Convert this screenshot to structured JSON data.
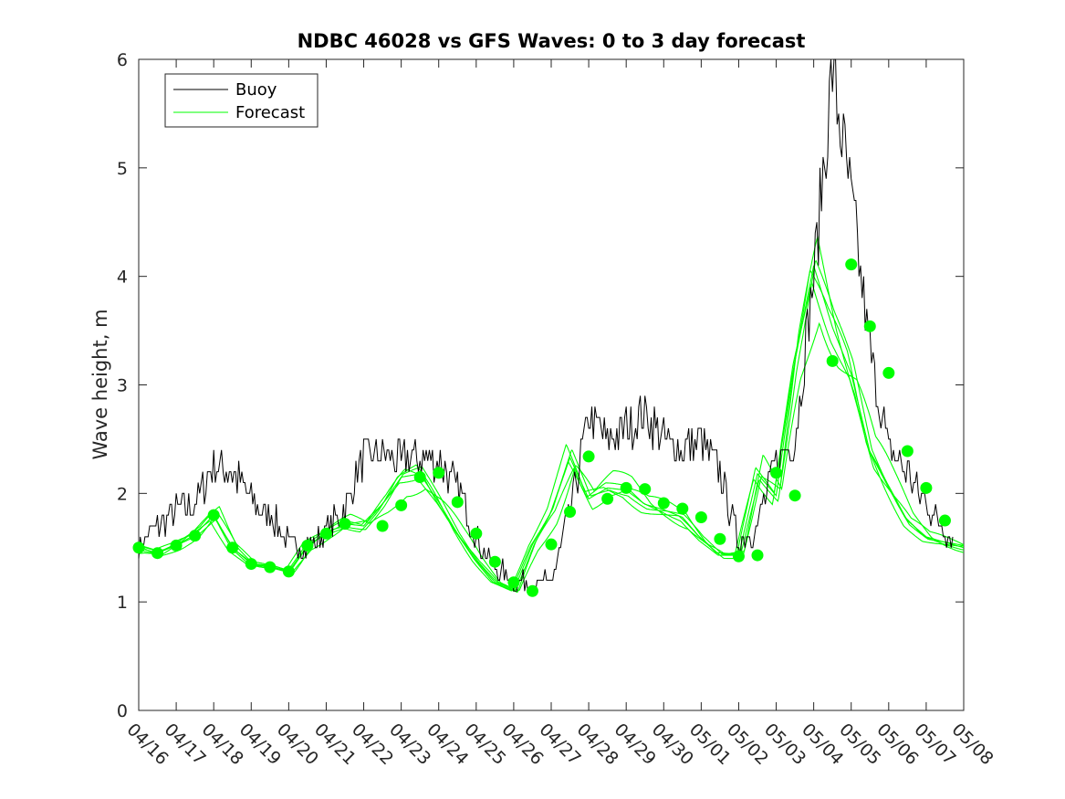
{
  "chart_data": {
    "type": "line",
    "title": "NDBC 46028 vs GFS Waves: 0 to 3 day forecast",
    "xlabel": "",
    "ylabel": "Wave height, m",
    "xlim": [
      "04/16",
      "05/08"
    ],
    "ylim": [
      0,
      6
    ],
    "x_tick_labels": [
      "04/16",
      "04/17",
      "04/18",
      "04/19",
      "04/20",
      "04/21",
      "04/22",
      "04/23",
      "04/24",
      "04/25",
      "04/26",
      "04/27",
      "04/28",
      "04/29",
      "04/30",
      "05/01",
      "05/02",
      "05/03",
      "05/04",
      "05/05",
      "05/06",
      "05/07",
      "05/08"
    ],
    "y_ticks": [
      0,
      1,
      2,
      3,
      4,
      5,
      6
    ],
    "grid": false,
    "legend": {
      "position": "top-left",
      "entries": [
        "Buoy",
        "Forecast"
      ]
    },
    "colors": {
      "buoy": "#000000",
      "forecast": "#00ff00",
      "axes": "#262626"
    },
    "buoy_x_day_offsets": [
      0,
      0.5,
      1,
      1.5,
      2,
      2.5,
      3,
      3.5,
      4,
      4.5,
      5,
      5.5,
      6,
      6.5,
      7,
      7.5,
      8,
      8.5,
      9,
      9.5,
      10,
      10.5,
      11,
      11.5,
      12,
      12.5,
      13,
      13.5,
      14,
      14.5,
      15,
      15.5,
      16,
      16.5,
      17,
      17.5,
      18,
      18.5,
      19,
      19.5,
      20,
      20.5,
      21,
      21.5,
      22
    ],
    "buoy_x": [
      "04/16",
      "04/16 12:00",
      "04/17",
      "04/17 12:00",
      "04/18",
      "04/18 12:00",
      "04/19",
      "04/19 12:00",
      "04/20",
      "04/20 12:00",
      "04/21",
      "04/21 12:00",
      "04/22",
      "04/22 12:00",
      "04/23",
      "04/23 12:00",
      "04/24",
      "04/24 12:00",
      "04/25",
      "04/25 12:00",
      "04/26",
      "04/26 12:00",
      "04/27",
      "04/27 12:00",
      "04/28",
      "04/28 12:00",
      "04/29",
      "04/29 12:00",
      "04/30",
      "04/30 12:00",
      "05/01",
      "05/01 12:00",
      "05/02",
      "05/02 12:00",
      "05/03",
      "05/03 12:00",
      "05/04",
      "05/04 12:00",
      "05/05",
      "05/05 12:00",
      "05/06",
      "05/06 12:00",
      "05/07",
      "05/07 12:00",
      "05/08"
    ],
    "series": [
      {
        "name": "Buoy",
        "values": [
          1.5,
          1.7,
          1.85,
          1.9,
          2.25,
          2.2,
          1.95,
          1.8,
          1.55,
          1.5,
          1.65,
          1.85,
          2.35,
          2.35,
          2.3,
          2.35,
          2.3,
          2.05,
          1.6,
          1.3,
          1.2,
          1.15,
          1.2,
          1.8,
          2.7,
          2.5,
          2.6,
          2.75,
          2.5,
          2.4,
          2.5,
          2.2,
          1.55,
          1.7,
          2.3,
          2.5,
          4.0,
          5.9,
          4.7,
          3.3,
          2.4,
          2.2,
          1.9,
          1.65,
          1.5
        ]
      },
      {
        "name": "Forecast",
        "values": [
          1.5,
          1.45,
          1.52,
          1.62,
          1.8,
          1.5,
          1.35,
          1.33,
          1.28,
          1.52,
          1.63,
          1.72,
          1.7,
          1.9,
          2.15,
          2.18,
          1.92,
          1.63,
          1.38,
          1.18,
          1.1,
          1.53,
          1.83,
          2.33,
          1.95,
          2.05,
          2.03,
          1.9,
          1.85,
          1.78,
          1.58,
          1.43,
          1.43,
          2.18,
          1.98,
          3.22,
          4.1,
          3.53,
          3.1,
          2.38,
          2.05,
          1.75,
          1.6,
          1.55,
          1.5
        ]
      }
    ],
    "forecast_markers_day_offsets": [
      0,
      0.5,
      1,
      1.5,
      2,
      2.5,
      3,
      3.5,
      4,
      4.5,
      5,
      5.5,
      6.5,
      7,
      7.5,
      8,
      8.5,
      9,
      9.5,
      10,
      10.5,
      11,
      11.5,
      12,
      12.5,
      13,
      13.5,
      14,
      14.5,
      15,
      15.5,
      16,
      16.5,
      17,
      17.5,
      18.5,
      19,
      19.5,
      20,
      20.5,
      21,
      21.5
    ],
    "forecast_markers_x": [
      "04/16",
      "04/16 12:00",
      "04/17",
      "04/17 12:00",
      "04/18",
      "04/18 12:00",
      "04/19",
      "04/19 12:00",
      "04/20",
      "04/20 12:00",
      "04/21",
      "04/21 12:00",
      "04/22 12:00",
      "04/23",
      "04/23 12:00",
      "04/24",
      "04/24 12:00",
      "04/25",
      "04/25 12:00",
      "04/26",
      "04/26 12:00",
      "04/27",
      "04/27 12:00",
      "04/28",
      "04/28 12:00",
      "04/29",
      "04/29 12:00",
      "04/30",
      "04/30 12:00",
      "05/01",
      "05/01 12:00",
      "05/02",
      "05/02 12:00",
      "05/03",
      "05/03 12:00",
      "05/04 12:00",
      "05/05",
      "05/05 12:00",
      "05/06",
      "05/06 12:00",
      "05/07",
      "05/07 12:00"
    ],
    "forecast_markers": [
      1.5,
      1.45,
      1.52,
      1.61,
      1.8,
      1.5,
      1.35,
      1.32,
      1.28,
      1.52,
      1.63,
      1.72,
      1.7,
      1.89,
      2.15,
      2.19,
      1.92,
      1.63,
      1.37,
      1.18,
      1.1,
      1.53,
      1.83,
      2.34,
      1.95,
      2.05,
      2.04,
      1.91,
      1.86,
      1.78,
      1.58,
      1.42,
      1.43,
      2.19,
      1.98,
      3.22,
      4.11,
      3.54,
      3.11,
      2.39,
      2.05,
      1.75
    ]
  }
}
